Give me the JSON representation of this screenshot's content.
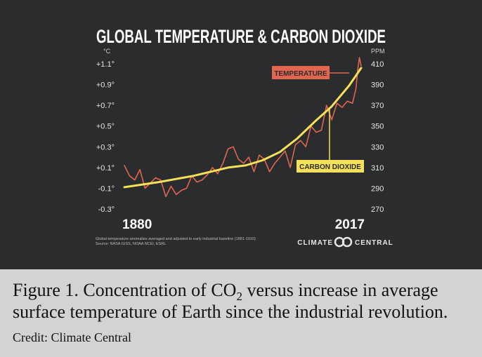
{
  "chart_data": {
    "type": "line",
    "title": "GLOBAL TEMPERATURE & CARBON DIOXIDE",
    "left_axis": {
      "unit": "°C",
      "ticks": [
        "+1.1°",
        "+0.9°",
        "+0.7°",
        "+0.5°",
        "+0.3°",
        "+0.1°",
        "-0.1°",
        "-0.3°"
      ],
      "tick_values": [
        1.1,
        0.9,
        0.7,
        0.5,
        0.3,
        0.1,
        -0.1,
        -0.3
      ],
      "ylim": [
        -0.3,
        1.1
      ]
    },
    "right_axis": {
      "unit": "PPM",
      "ticks": [
        "410",
        "390",
        "370",
        "350",
        "330",
        "310",
        "290",
        "270"
      ],
      "tick_values": [
        410,
        390,
        370,
        350,
        330,
        310,
        290,
        270
      ],
      "ylim": [
        270,
        410
      ]
    },
    "x_start_label": "1880",
    "x_end_label": "2017",
    "xlim": [
      1880,
      2017
    ],
    "series": [
      {
        "name": "TEMPERATURE",
        "color": "#e2654f",
        "axis": "left",
        "x": [
          1880,
          1883,
          1886,
          1889,
          1892,
          1895,
          1898,
          1901,
          1904,
          1907,
          1910,
          1913,
          1916,
          1919,
          1922,
          1925,
          1928,
          1931,
          1934,
          1937,
          1940,
          1943,
          1946,
          1949,
          1952,
          1955,
          1958,
          1961,
          1964,
          1967,
          1970,
          1973,
          1976,
          1979,
          1982,
          1985,
          1988,
          1991,
          1994,
          1997,
          2000,
          2003,
          2006,
          2009,
          2012,
          2014,
          2015,
          2016,
          2017
        ],
        "values": [
          0.12,
          0.02,
          -0.02,
          0.08,
          -0.1,
          -0.05,
          0.0,
          -0.02,
          -0.18,
          -0.08,
          -0.16,
          -0.12,
          -0.1,
          0.02,
          -0.04,
          -0.02,
          0.03,
          0.1,
          0.04,
          0.14,
          0.28,
          0.3,
          0.18,
          0.14,
          0.2,
          0.06,
          0.22,
          0.18,
          0.06,
          0.14,
          0.2,
          0.26,
          0.1,
          0.32,
          0.36,
          0.3,
          0.5,
          0.44,
          0.46,
          0.7,
          0.56,
          0.72,
          0.68,
          0.74,
          0.72,
          0.86,
          1.04,
          1.16,
          1.08
        ]
      },
      {
        "name": "CARBON DIOXIDE",
        "color": "#f5e05a",
        "axis": "right",
        "x": [
          1880,
          1900,
          1920,
          1940,
          1950,
          1960,
          1970,
          1980,
          1990,
          2000,
          2010,
          2017
        ],
        "values": [
          291,
          296,
          302,
          310,
          312,
          317,
          325,
          338,
          354,
          369,
          389,
          406
        ]
      }
    ],
    "labels": {
      "temperature": "TEMPERATURE",
      "carbon_dioxide": "CARBON DIOXIDE"
    },
    "footnote_line1": "Global temperature anomalies averaged and adjusted to early industrial baseline (1881-1910)",
    "footnote_line2": "Source: NASA GISS, NOAA NCEI, ESRL",
    "brand_left": "CLIMATE",
    "brand_right": "CENTRAL",
    "grid": false,
    "background": "#2b2c2e"
  },
  "caption": {
    "lead": "Figure 1. Concentration of CO",
    "subscript": "2",
    "rest": " versus increase in average surface temperature of Earth since the industrial revolution.",
    "credit": " Credit: Climate Central"
  }
}
